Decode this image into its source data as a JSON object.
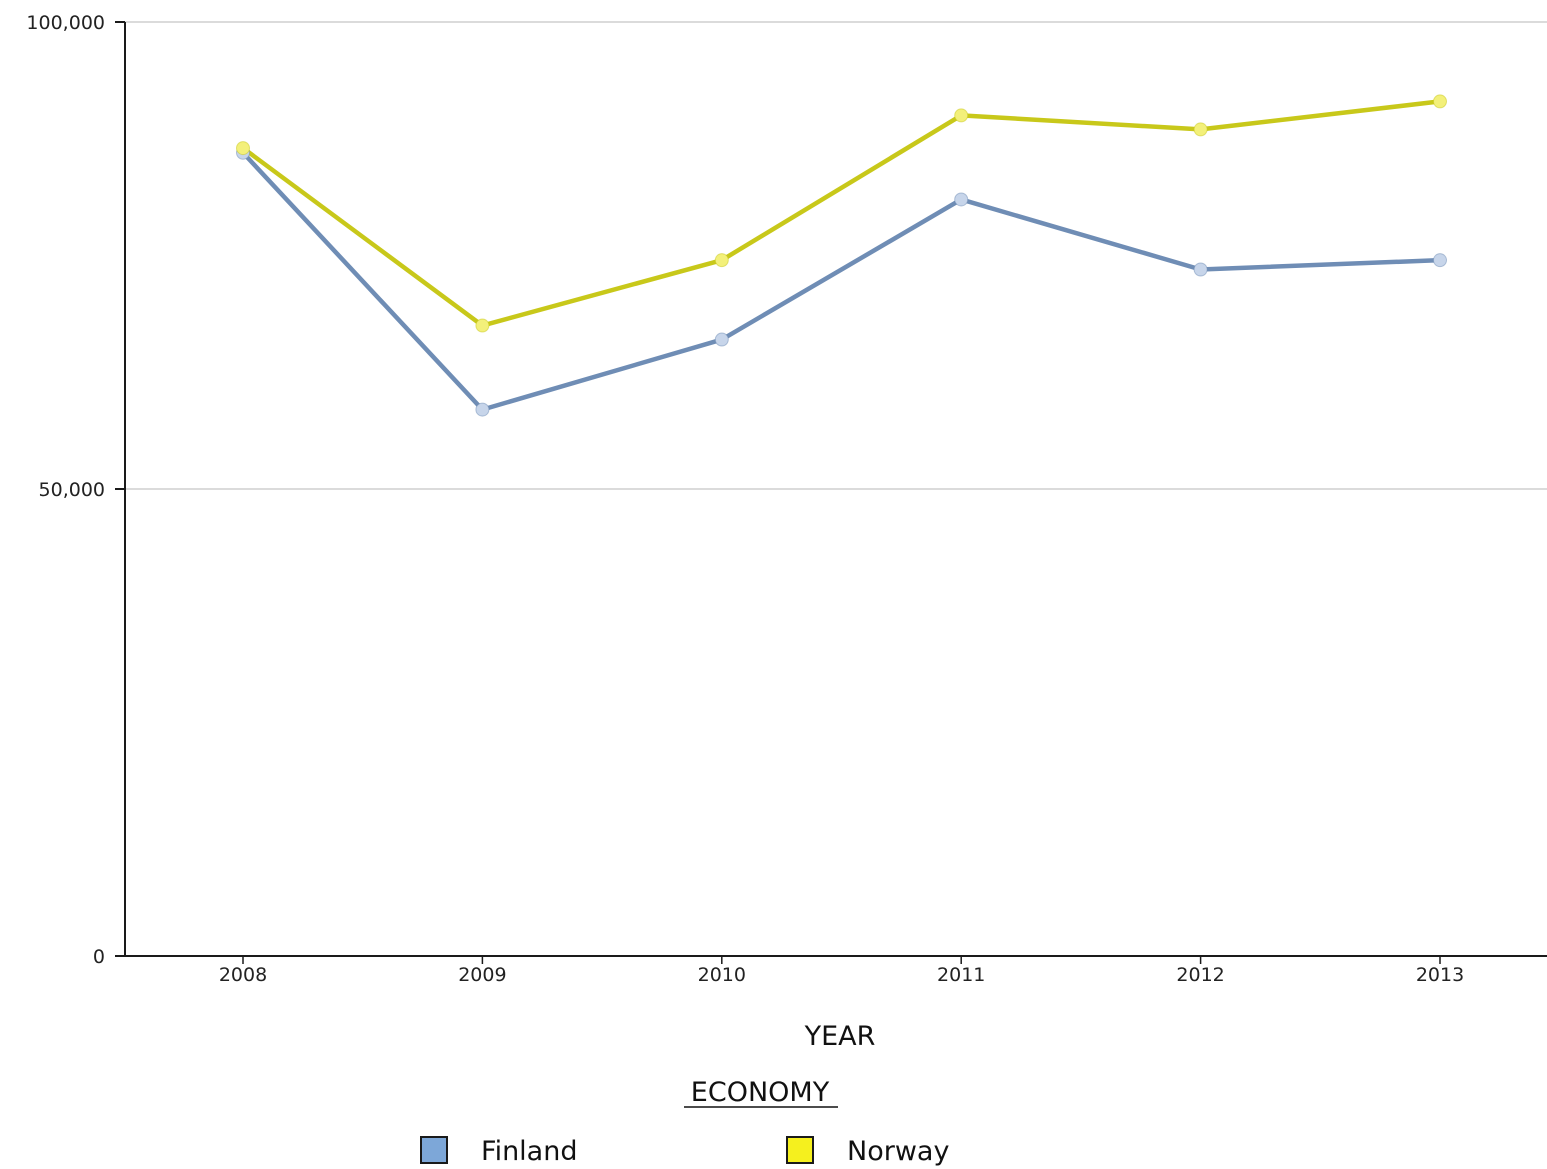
{
  "chart_data": {
    "type": "line",
    "x": [
      "2008",
      "2009",
      "2010",
      "2011",
      "2012",
      "2013"
    ],
    "series": [
      {
        "name": "Finland",
        "values": [
          86000,
          58500,
          66000,
          81000,
          73500,
          74500
        ],
        "color": "#6f8db5",
        "marker_color": "#c7d5ea",
        "legend_color": "#7da7d8"
      },
      {
        "name": "Norway",
        "values": [
          86500,
          67500,
          74500,
          90000,
          88500,
          91500
        ],
        "color": "#c8c81a",
        "marker_color": "#f3f07a",
        "legend_color": "#f5f01e"
      }
    ],
    "ylim": [
      0,
      100000
    ],
    "yticks": [
      {
        "value": 0,
        "label": "0"
      },
      {
        "value": 50000,
        "label": "50,000"
      },
      {
        "value": 100000,
        "label": "100,000"
      }
    ],
    "xlabel": "YEAR",
    "ylabel": "",
    "legend_title": "ECONOMY",
    "grid": true,
    "legend_position": "bottom"
  }
}
